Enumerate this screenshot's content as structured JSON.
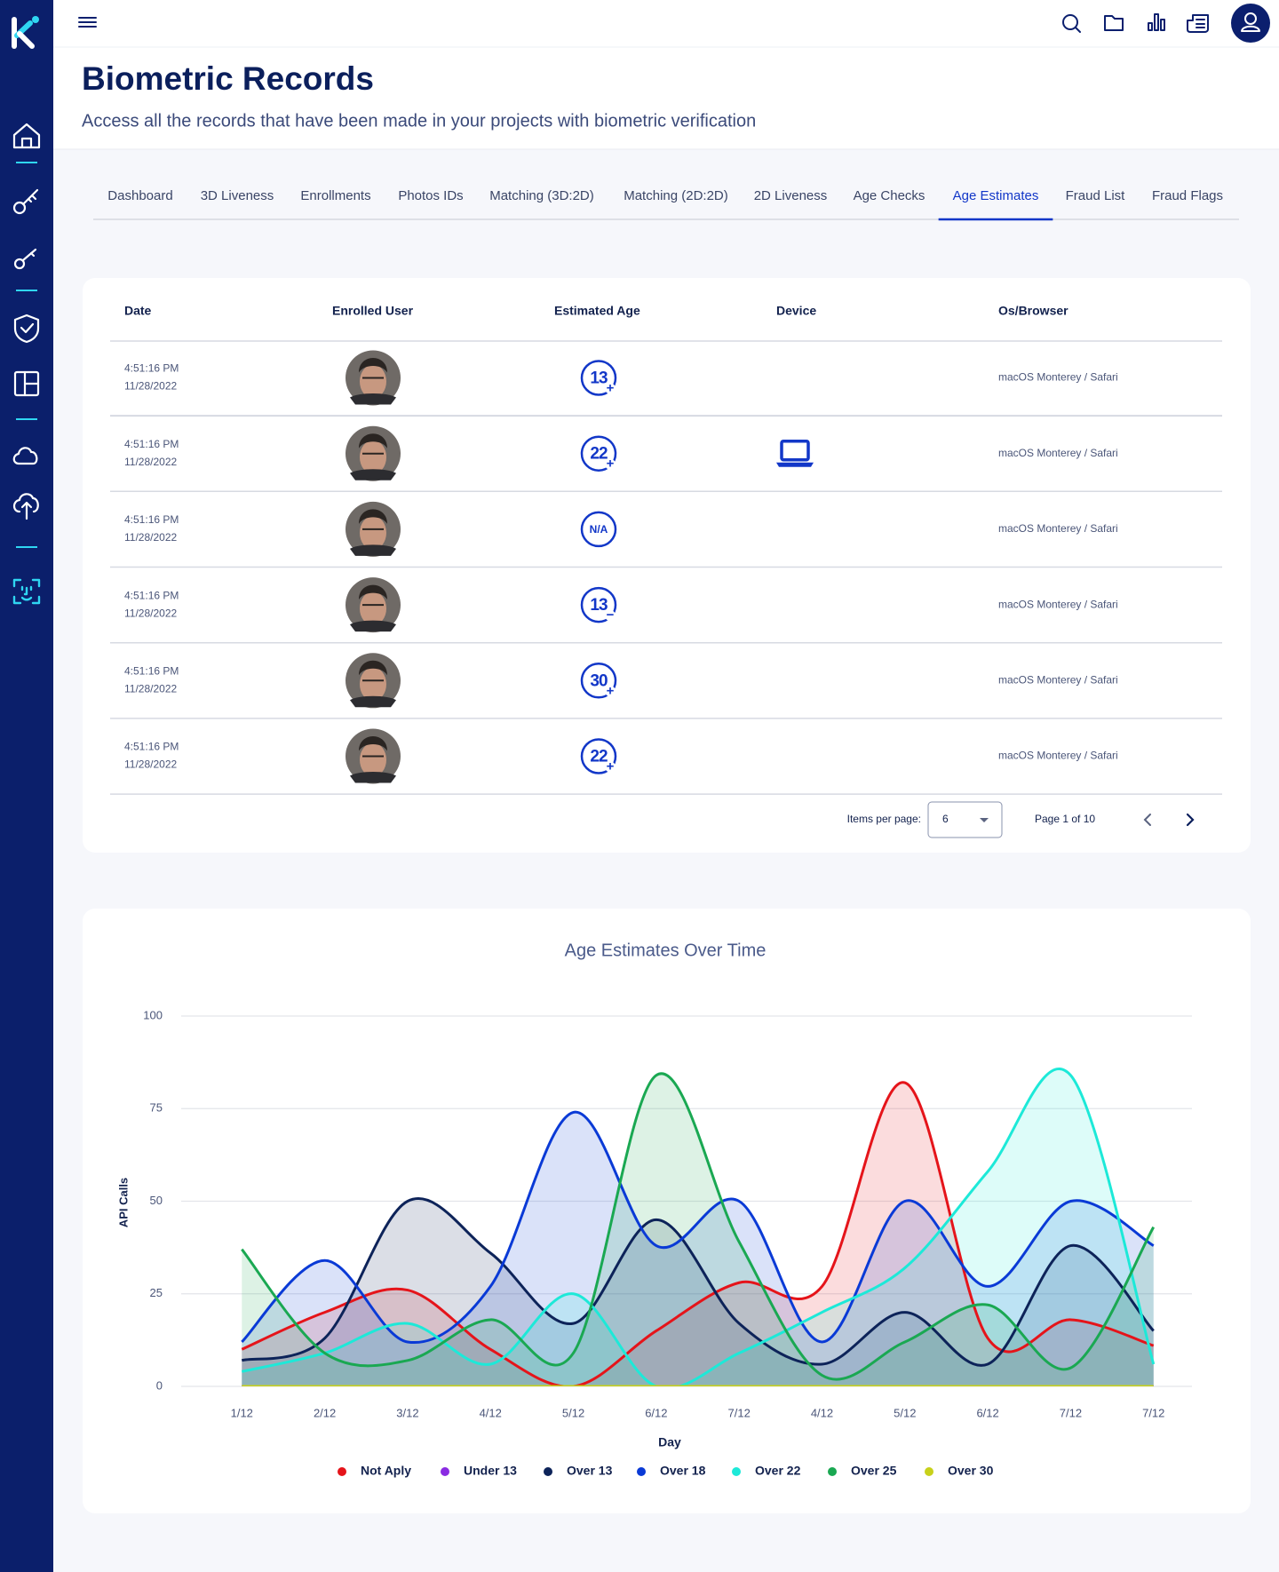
{
  "header": {
    "title": "Biometric Records",
    "subtitle": "Access all the records that have been made in your projects with biometric verification"
  },
  "tabs": {
    "items": [
      "Dashboard",
      "3D Liveness",
      "Enrollments",
      "Photos IDs",
      "Matching (3D:2D)",
      "Matching (2D:2D)",
      "2D Liveness",
      "Age Checks",
      "Age Estimates",
      "Fraud List",
      "Fraud Flags"
    ],
    "active": 8
  },
  "table": {
    "columns": [
      "Date",
      "Enrolled User",
      "Estimated Age",
      "Device",
      "Os/Browser"
    ],
    "rows": [
      {
        "time": "4:51:16 PM",
        "date": "11/28/2022",
        "age": "13",
        "sign": "+",
        "device": false,
        "os": "macOS Monterey / Safari"
      },
      {
        "time": "4:51:16 PM",
        "date": "11/28/2022",
        "age": "22",
        "sign": "+",
        "device": true,
        "os": "macOS Monterey / Safari"
      },
      {
        "time": "4:51:16 PM",
        "date": "11/28/2022",
        "age": "N/A",
        "device": false,
        "os": "macOS Monterey / Safari"
      },
      {
        "time": "4:51:16 PM",
        "date": "11/28/2022",
        "age": "13",
        "sign": "−",
        "device": false,
        "os": "macOS Monterey / Safari"
      },
      {
        "time": "4:51:16 PM",
        "date": "11/28/2022",
        "age": "30",
        "sign": "+",
        "device": false,
        "os": "macOS Monterey / Safari"
      },
      {
        "time": "4:51:16 PM",
        "date": "11/28/2022",
        "age": "22",
        "sign": "+",
        "device": false,
        "os": "macOS Monterey / Safari"
      }
    ],
    "pagination": {
      "label": "Items per page:",
      "per_page": 6,
      "page": "Page 1 of 10"
    }
  },
  "chart_data": {
    "type": "area",
    "title": "Age Estimates Over Time",
    "x_label": "Day",
    "y_label": "API Calls",
    "categories": [
      "1/12",
      "2/12",
      "3/12",
      "4/12",
      "5/12",
      "6/12",
      "7/12",
      "4/12",
      "5/12",
      "6/12",
      "7/12",
      "7/12"
    ],
    "ylim": [
      0,
      100
    ],
    "yticks": [
      0,
      25,
      50,
      75,
      100
    ],
    "grid": true,
    "series": [
      {
        "name": "Not Aply",
        "color": "#e5141a",
        "values": [
          10,
          20,
          26,
          10,
          0,
          15,
          28,
          27,
          82,
          13,
          18,
          11
        ]
      },
      {
        "name": "Under 13",
        "color": "#8a2be2",
        "values": [
          0,
          0,
          0,
          0,
          0,
          0,
          0,
          0,
          0,
          0,
          0,
          0
        ]
      },
      {
        "name": "Over 13",
        "color": "#0d2359",
        "values": [
          7,
          13,
          50,
          36,
          17,
          45,
          17,
          6,
          20,
          6,
          38,
          15
        ]
      },
      {
        "name": "Over 18",
        "color": "#0a3ad6",
        "values": [
          12,
          34,
          12,
          27,
          74,
          38,
          50,
          12,
          50,
          27,
          50,
          38
        ]
      },
      {
        "name": "Over 22",
        "color": "#1de9d8",
        "values": [
          4,
          9,
          17,
          6,
          25,
          0,
          9,
          20,
          32,
          58,
          84,
          6
        ]
      },
      {
        "name": "Over 25",
        "color": "#1aa852",
        "values": [
          37,
          9,
          7,
          18,
          9,
          84,
          39,
          3,
          12,
          22,
          5,
          43
        ]
      },
      {
        "name": "Over 30",
        "color": "#c8d11a",
        "values": [
          0,
          0,
          0,
          0,
          0,
          0,
          0,
          0,
          0,
          0,
          0,
          0
        ]
      }
    ]
  }
}
